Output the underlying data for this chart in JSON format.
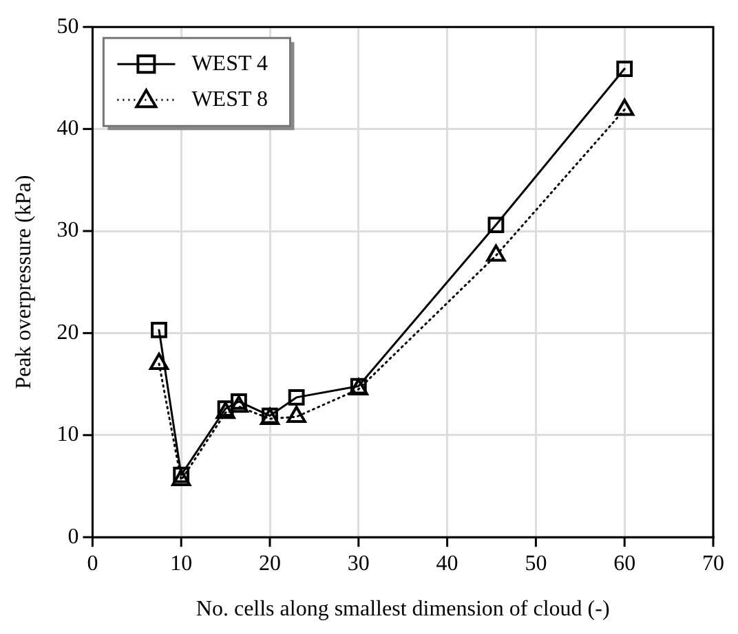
{
  "chart_data": {
    "type": "line",
    "xlabel": "No. cells along smallest dimension of cloud (-)",
    "ylabel": "Peak overpressure (kPa)",
    "x": [
      7.5,
      10,
      15,
      16.5,
      20,
      23,
      30,
      45.5,
      60
    ],
    "series": [
      {
        "name": "WEST 4",
        "color": "#000000",
        "marker": "square",
        "line_style": "solid",
        "values": [
          20.3,
          6.1,
          12.6,
          13.3,
          11.9,
          13.7,
          14.8,
          30.6,
          45.9
        ]
      },
      {
        "name": "WEST 8",
        "color": "#000000",
        "marker": "triangle",
        "line_style": "dotted",
        "values": [
          17.0,
          5.6,
          12.2,
          12.8,
          11.6,
          11.8,
          14.5,
          27.6,
          41.9
        ]
      }
    ],
    "xlim": [
      0,
      70
    ],
    "xticks": [
      0,
      10,
      20,
      30,
      40,
      50,
      60,
      70
    ],
    "ylim": [
      0,
      50
    ],
    "yticks": [
      0,
      10,
      20,
      30,
      40,
      50
    ],
    "grid": true,
    "legend": "top left"
  }
}
